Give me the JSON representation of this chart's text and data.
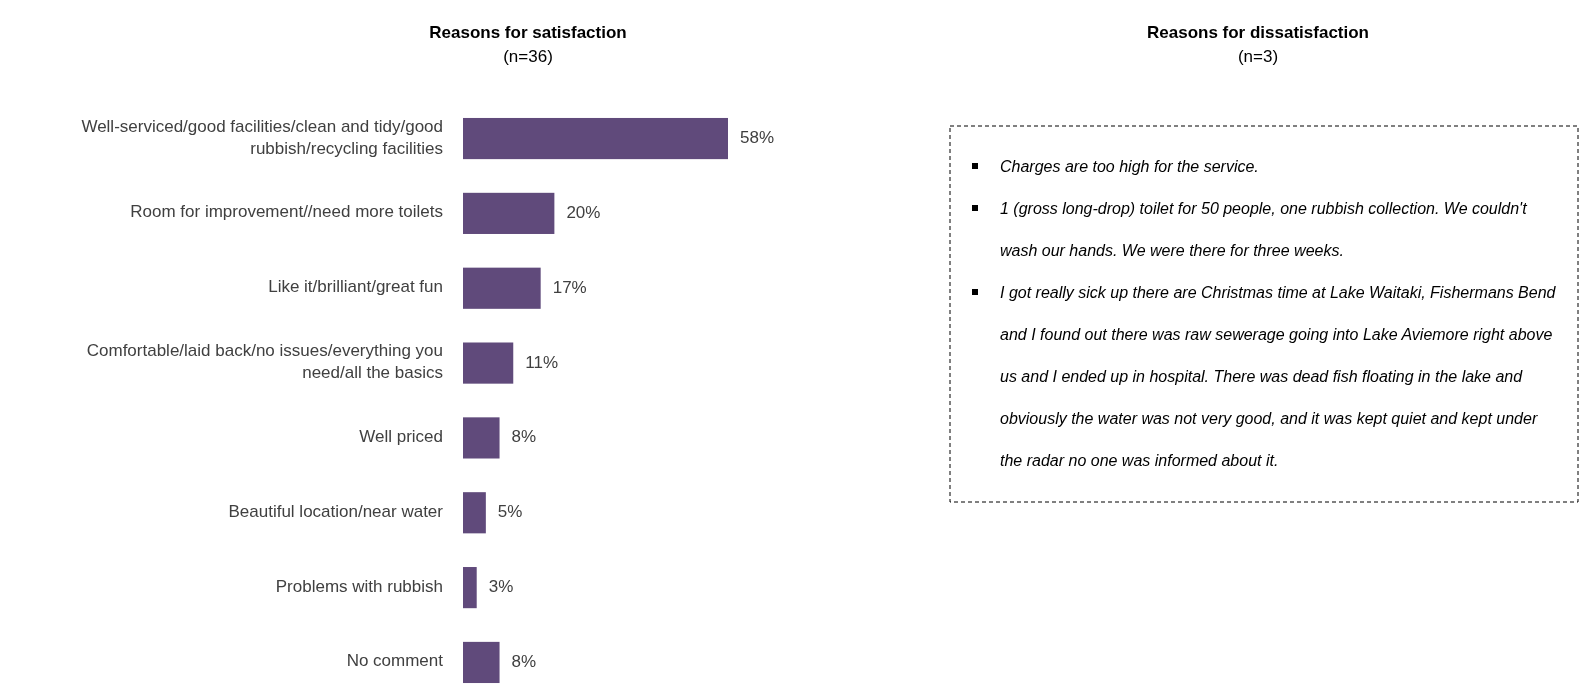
{
  "chart_data": [
    {
      "type": "bar",
      "orientation": "horizontal",
      "title": "Reasons for satisfaction",
      "subtitle": "(n=36)",
      "color": "#604a7b",
      "categories": [
        "Well-serviced/good facilities/clean and tidy/good rubbish/recycling facilities",
        "Room for improvement//need more toilets",
        "Like it/brilliant/great fun",
        "Comfortable/laid back/no issues/everything you need/all the basics",
        "Well priced",
        "Beautiful location/near water",
        "Problems with rubbish",
        "No comment"
      ],
      "values": [
        58,
        20,
        17,
        11,
        8,
        5,
        3,
        8
      ],
      "value_labels": [
        "58%",
        "20%",
        "17%",
        "11%",
        "8%",
        "5%",
        "3%",
        "8%"
      ]
    },
    {
      "type": "other",
      "title": "Reasons for dissatisfaction",
      "subtitle": "(n=3)",
      "annotations": [
        "Charges are too high for the service.",
        "1 (gross long-drop) toilet for 50 people, one rubbish collection. We couldn't wash our hands. We were there for three weeks.",
        "I got really sick up there are Christmas time at Lake Waitaki, Fishermans Bend and I found out there was raw sewerage going into Lake Aviemore right above us and I ended up in hospital. There was dead fish floating in the lake and obviously the water was not very good, and it was kept quiet and kept under the radar no one was informed about it."
      ]
    }
  ]
}
